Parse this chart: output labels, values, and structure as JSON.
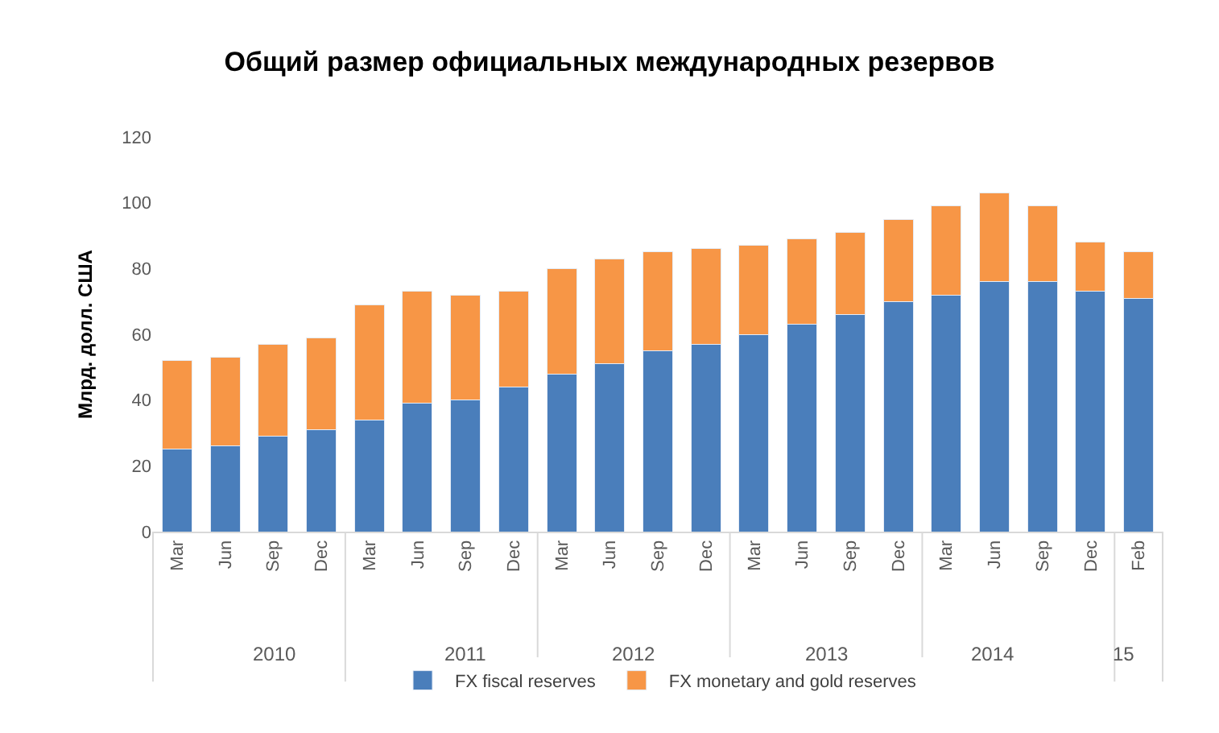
{
  "chart_data": {
    "type": "bar",
    "stacked": true,
    "title": "Общий размер официальных международных резервов",
    "ylabel": "Млрд. долл. США",
    "categories": [
      "Mar",
      "Jun",
      "Sep",
      "Dec",
      "Mar",
      "Jun",
      "Sep",
      "Dec",
      "Mar",
      "Jun",
      "Sep",
      "Dec",
      "Mar",
      "Jun",
      "Sep",
      "Dec",
      "Mar",
      "Jun",
      "Sep",
      "Dec",
      "Feb"
    ],
    "annotations": [
      "2010",
      "2011",
      "2012",
      "2013",
      "2014",
      "15"
    ],
    "series": [
      {
        "name": "FX fiscal reserves",
        "color": "#4a7ebb",
        "values": [
          25,
          26,
          29,
          31,
          34,
          39,
          40,
          44,
          48,
          51,
          55,
          57,
          60,
          63,
          66,
          70,
          72,
          76,
          76,
          73,
          71
        ]
      },
      {
        "name": "FX monetary and gold reserves",
        "color": "#f79646",
        "values": [
          27,
          27,
          28,
          28,
          35,
          34,
          32,
          29,
          32,
          32,
          30,
          29,
          27,
          26,
          25,
          25,
          27,
          27,
          23,
          15,
          14
        ]
      }
    ],
    "ylim": [
      0,
      120
    ],
    "yticks": [
      0,
      20,
      40,
      60,
      80,
      100,
      120
    ],
    "grid": false,
    "legend": "bottom"
  }
}
